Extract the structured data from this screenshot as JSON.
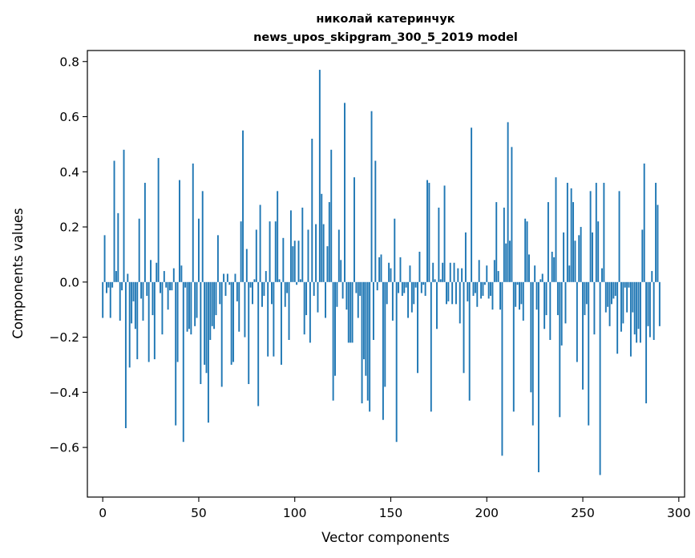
{
  "chart_data": {
    "type": "bar",
    "title_line1": "николай катеринчук",
    "title_line2": "news_upos_skipgram_300_5_2019 model",
    "xlabel": "Vector components",
    "ylabel": "Components values",
    "xlim": [
      -8,
      303
    ],
    "ylim": [
      -0.78,
      0.84
    ],
    "xticks": [
      0,
      50,
      100,
      150,
      200,
      250,
      300
    ],
    "yticks": [
      -0.6,
      -0.4,
      -0.2,
      0.0,
      0.2,
      0.4,
      0.6,
      0.8
    ],
    "ytick_labels": [
      "−0.6",
      "−0.4",
      "−0.2",
      "0.0",
      "0.2",
      "0.4",
      "0.6",
      "0.8"
    ],
    "bar_color": "#1f77b4",
    "values": [
      -0.13,
      0.17,
      -0.04,
      -0.02,
      -0.13,
      -0.02,
      0.44,
      0.04,
      0.25,
      -0.14,
      -0.03,
      0.48,
      -0.53,
      0.03,
      -0.31,
      -0.15,
      -0.07,
      -0.17,
      -0.28,
      0.23,
      -0.06,
      -0.14,
      0.36,
      -0.05,
      -0.29,
      0.08,
      -0.12,
      -0.28,
      0.07,
      0.45,
      -0.04,
      -0.19,
      0.04,
      -0.02,
      -0.1,
      -0.03,
      -0.03,
      0.05,
      -0.52,
      -0.29,
      0.37,
      0.06,
      -0.58,
      -0.02,
      -0.18,
      -0.17,
      -0.19,
      0.43,
      -0.16,
      -0.13,
      0.23,
      -0.37,
      0.33,
      -0.3,
      -0.33,
      -0.51,
      -0.21,
      -0.16,
      -0.17,
      -0.12,
      0.17,
      -0.08,
      -0.38,
      0.03,
      -0.05,
      0.03,
      -0.01,
      -0.3,
      -0.29,
      0.03,
      -0.07,
      -0.18,
      0.22,
      0.55,
      -0.2,
      0.12,
      -0.37,
      -0.02,
      -0.08,
      0.01,
      0.19,
      -0.45,
      0.28,
      -0.09,
      -0.05,
      0.04,
      -0.27,
      0.22,
      -0.08,
      -0.27,
      0.22,
      0.33,
      0.01,
      -0.3,
      0.16,
      -0.09,
      -0.04,
      -0.21,
      0.26,
      0.13,
      0.15,
      -0.01,
      0.15,
      0.01,
      0.27,
      -0.19,
      -0.12,
      0.19,
      -0.22,
      0.52,
      -0.05,
      0.21,
      -0.11,
      0.77,
      0.32,
      0.21,
      -0.13,
      0.13,
      0.29,
      0.48,
      -0.43,
      -0.34,
      -0.09,
      0.19,
      0.08,
      -0.06,
      0.65,
      -0.1,
      -0.22,
      -0.22,
      -0.22,
      0.38,
      -0.04,
      -0.13,
      -0.05,
      -0.44,
      -0.28,
      -0.34,
      -0.43,
      -0.47,
      0.62,
      -0.21,
      0.44,
      -0.03,
      0.09,
      0.1,
      -0.5,
      -0.38,
      -0.08,
      0.07,
      0.05,
      -0.14,
      0.23,
      -0.58,
      -0.04,
      0.09,
      -0.05,
      -0.04,
      -0.02,
      -0.13,
      0.06,
      -0.11,
      -0.08,
      -0.02,
      -0.33,
      0.11,
      -0.04,
      -0.01,
      -0.05,
      0.37,
      0.36,
      -0.47,
      0.07,
      0.01,
      -0.17,
      0.27,
      0.01,
      0.07,
      0.35,
      -0.08,
      -0.07,
      0.07,
      -0.08,
      0.07,
      -0.08,
      0.05,
      -0.15,
      0.05,
      -0.33,
      0.18,
      -0.07,
      -0.43,
      0.56,
      -0.05,
      -0.04,
      -0.09,
      0.08,
      -0.06,
      -0.05,
      -0.01,
      0.06,
      -0.06,
      -0.05,
      -0.1,
      0.08,
      0.29,
      0.04,
      -0.1,
      -0.63,
      0.27,
      0.14,
      0.58,
      0.15,
      0.49,
      -0.47,
      -0.09,
      -0.01,
      -0.1,
      -0.08,
      -0.14,
      0.23,
      0.22,
      0.1,
      -0.4,
      -0.52,
      0.06,
      -0.1,
      -0.69,
      0.01,
      0.03,
      -0.17,
      -0.12,
      0.29,
      -0.21,
      0.11,
      0.09,
      0.38,
      -0.12,
      -0.49,
      -0.23,
      0.18,
      -0.15,
      0.36,
      0.06,
      0.34,
      0.29,
      0.15,
      -0.29,
      0.17,
      0.2,
      -0.39,
      -0.12,
      -0.08,
      -0.52,
      0.33,
      0.18,
      -0.19,
      0.36,
      0.22,
      -0.7,
      0.05,
      0.36,
      -0.11,
      -0.09,
      -0.16,
      -0.08,
      -0.06,
      -0.05,
      -0.26,
      0.33,
      -0.18,
      -0.15,
      -0.02,
      -0.11,
      -0.02,
      -0.27,
      -0.11,
      -0.19,
      -0.22,
      -0.17,
      -0.22,
      0.19,
      0.43,
      -0.44,
      -0.16,
      -0.2,
      0.04,
      -0.21,
      0.36,
      0.28,
      -0.16
    ]
  }
}
